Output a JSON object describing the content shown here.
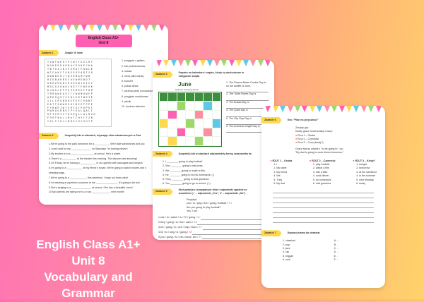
{
  "cover": {
    "line1": "English Class A1+",
    "line2": "Unit 8",
    "line3": "Vocabulary and Grammar"
  },
  "page1": {
    "header": "English Class A1+\nUnit 8",
    "header_l1": "English Class A1+",
    "header_l2": "Unit 8",
    "task1": {
      "tag": "Zadanie 1",
      "title": "Znajdź 10 słów",
      "grid": [
        "YVWTWEHTPCWYYUZCHT",
        "NOKPEEHRBAYDOHPJKA",
        "TBTOXJBIVUMGTPGWLE",
        "WTFAKCTOBESSPARTYS",
        "AWBWERJTWURBAMYWN",
        "RZEBARBECUEWMOBDT",
        "OKEZDANCESHOWJOICC",
        "MGCOZGWKCNGTTFBEOK",
        "DJGSLEFPOVERKUFTGM",
        "TRRQWEAVITYWWMOWFP",
        "ARESQSYCONCERTWDIE",
        "ILLCRSBBKEPEECOBBT",
        "EATTZWWMSHIMCETPPE",
        "FYBWPJWTSRYGIPOPGT",
        "PWHAGRBECPYKALQALI",
        "HPICMICYGEDQLLALRVO",
        "FOOTBALLMATCHYITZN",
        "YZLTYGJLBRZYSYXHYP"
      ],
      "words": [
        "1. przyjęcie z grillem",
        "2. bal przebierańców",
        "3. sztuka",
        "4. mecz piłki nożnej",
        "5. koncert",
        "6. pokaz tańca",
        "7. piżama party, nocowanka",
        "8. przyjęcie urodzinowe",
        "9. piknik",
        "10. konkurs talentów"
      ]
    },
    "task2": {
      "tag": "Zadanie 2",
      "title": "Uzupełnij luki w zdaniach, używając słów odnalezionych w Zad.",
      "items": [
        "1.We're going to the park tomorrow for a __________. We'll take sandwiches and juic",
        "2.I can't wait for my ______________ on Saturday! I'm turning eleven!",
        "3.My brother is in a ________________ at school. He's a pirate.",
        "4.There's a __________ at the theatre this evening. The dancers are amazing!",
        "5.On Friday, we're having a ___________ in our garden with sausages and burgers.",
        "6.I'm going to a ___________ at my friend's house. We're going to watch movies and s",
        "sleeping bags.",
        "7.We're going to a ____________ this weekend. I hope our team wins!",
        "8.I'm wearing a superhero costume to the _______________. It's going to be fun!",
        "9.She's singing in a ______________ at school. She has a beautiful voice!",
        "10.My parents are taking me to a rock _____________ next month!"
      ]
    }
  },
  "page2": {
    "task3": {
      "tag": "Zadanie 3",
      "title": "Popatrz na kalendarz i napisz, kiedy są obchodzone te nietypowe święta",
      "cal_title": "June",
      "cal_sub": "National Camping Month",
      "items": [
        "1. The Peanut Butter Cookie Day is on the twelfth of June.",
        "2. The Turtle Races Day is",
        "3. The Bubba Day is",
        "4. The Sushi day is",
        "5. The Flip Flop Day is",
        "6. The American Eagle Day is"
      ]
    },
    "task4": {
      "tag": "Zadanie 4",
      "title": "Uzupełnij luki w zdaniach odpowiednią formą czasownika be",
      "items": [
        "1. I ________ going to play football.",
        "2. She ________ going to eat pizza.",
        "3. We ________ going to watch a film.",
        "4. He ________ going to do his homework. (-)",
        "5. They ________ going to visit grandma.",
        "6. You ________ going to go to school. (+)"
      ]
    },
    "task5": {
      "tag": "Zadanie 5",
      "title": "Ułóż pytania z rozsypanych słów i odpowiedz zgodnie ze znaczkiem (✓ – odpowiedź „Yes”, ✗ – odpowiedź „No”)",
      "example_label": "Przykład:",
      "example": "you / to / play / Are / going / football / ? ✓",
      "example_q": "Are you going to play football?",
      "example_a": "Yes, I am.",
      "items": [
        {
          "t": "1.she / to / watch / is / TV / going / ? ",
          "m": "✓"
        },
        {
          "t": "2.they / going / to / Are / swim / ? ",
          "m": "✗"
        },
        {
          "t": "3.we / going / to / Are / help / Mum / ? ",
          "m": "✓"
        },
        {
          "t": "4.he / to / sing / is / going / ? ",
          "m": "✗"
        },
        {
          "t": "5.you / going / to / eat / pizza / Are / ? ",
          "m": "✓"
        }
      ]
    }
  },
  "page3": {
    "task6": {
      "tag": "Zadanie 6",
      "title": "Gra: \"Plan na przyszłość\"",
      "rules": "Zasady gry:",
      "rules2": "Każdy gracz rzuca kostką 3 razy:",
      "throws": [
        "Rzut 1 – Osoba",
        "Rzut 2 – Czynność",
        "Rzut 3 – Czas (kiedy?)"
      ],
      "instr": "Gracz tworzy zdanie z \"to be going to\", np.:",
      "example": "\"My dad is going to cook dinner tomorrow.\"",
      "cols": [
        {
          "h": "RZUT 1 – Osoba",
          "items": [
            "1. I",
            "2. My sister",
            "3. My friend",
            "4. We",
            "5. They",
            "6. My dad"
          ]
        },
        {
          "h": "RZUT 2 – Czynność",
          "items": [
            "1. play football",
            "2. watch a film",
            "3. ride a bike",
            "4. cook dinner",
            "5. do homework",
            "6. visit grandma"
          ]
        },
        {
          "h": "RZUT 3 – Kiedy?",
          "items": [
            "1. tonight",
            "2. tomorrow",
            "3. at the weekend",
            "4. in the summer",
            "5. next Monday",
            "6. today"
          ]
        }
      ]
    },
    "task7": {
      "tag": "Zadanie 7",
      "title": "Dopasuj słowo do obrazka:",
      "words": [
        "1. classical",
        "2. pop",
        "3. jazz",
        "4. rap",
        "5. reggae",
        "6. rock"
      ],
      "letters": [
        "A.",
        "B.",
        "C.",
        "D.",
        "E.",
        "F."
      ]
    }
  },
  "colors": {
    "tag": "#ffd84d",
    "accent": "#ff5fb0",
    "red": "#ee3333"
  }
}
